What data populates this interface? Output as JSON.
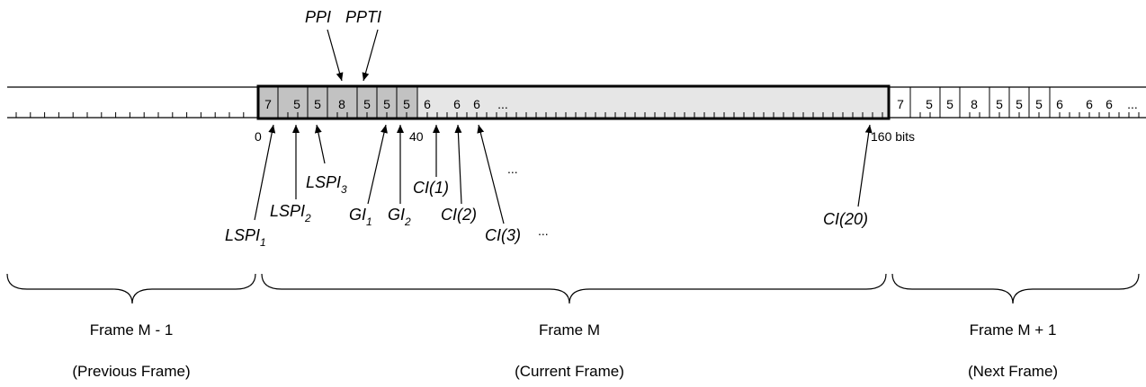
{
  "colors": {
    "dark_field": "#c2c2c2",
    "light_field": "#e6e6e6",
    "line": "#000000"
  },
  "current_frame_fields": [
    "7",
    "5",
    "5",
    "8",
    "5",
    "5",
    "5",
    "6",
    "6",
    "6",
    "..."
  ],
  "next_frame_fields": [
    "7",
    "5",
    "5",
    "8",
    "5",
    "5",
    "5",
    "6",
    "6",
    "6",
    "..."
  ],
  "bit_labels": {
    "start": "0",
    "mid": "40",
    "end": "160 bits"
  },
  "top_labels": {
    "ppi": "PPI",
    "ppti": "PPTI"
  },
  "bottom_labels": {
    "lspi1": {
      "base": "LSPI",
      "sub": "1"
    },
    "lspi2": {
      "base": "LSPI",
      "sub": "2"
    },
    "lspi3": {
      "base": "LSPI",
      "sub": "3"
    },
    "gi1": {
      "base": "GI",
      "sub": "1"
    },
    "gi2": {
      "base": "GI",
      "sub": "2"
    },
    "ci1": "CI(1)",
    "ci2": "CI(2)",
    "ci3": "CI(3)",
    "ci3_ellipsis": "...",
    "ci20": "CI(20)",
    "mid_ellipsis": "..."
  },
  "frames": [
    {
      "name": "Frame M - 1",
      "desc": "(Previous Frame)"
    },
    {
      "name": "Frame M",
      "desc": "(Current Frame)"
    },
    {
      "name": "Frame M + 1",
      "desc": "(Next Frame)"
    }
  ]
}
